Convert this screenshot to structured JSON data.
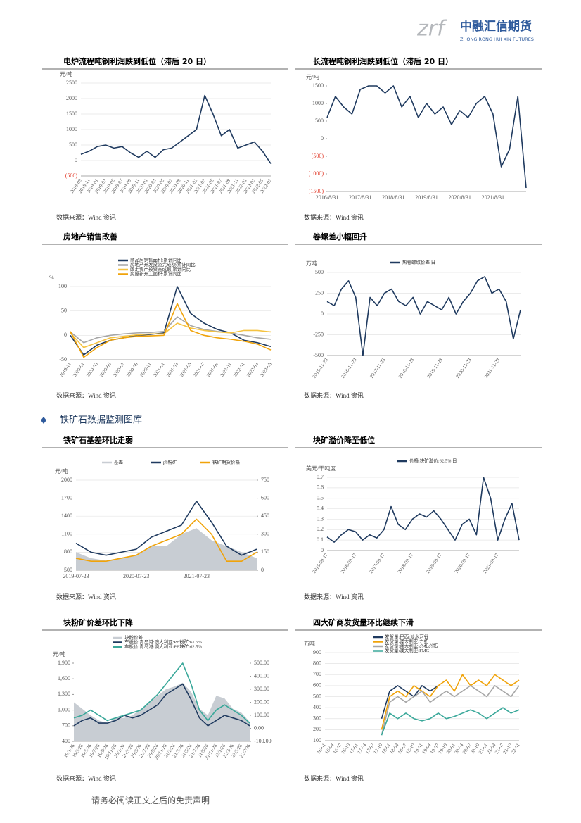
{
  "header": {
    "logo_mark": "zrf",
    "logo_text": "中融汇信期货",
    "logo_subtext": "ZHONG RONG HUI XIN FUTURES"
  },
  "section_title": "铁矿石数据监测图库",
  "footer": "请务必阅读正文之后的免责声明",
  "chart_data": [
    {
      "type": "line",
      "title": "电炉流程吨钢利润跌到低位（滞后 20 日）",
      "source": "数据来源：Wind 资讯",
      "unit": "元/吨",
      "categories": [
        "2018-09",
        "2018-11",
        "2019-01",
        "2019-03",
        "2019-05",
        "2019-07",
        "2019-09",
        "2019-11",
        "2020-01",
        "2020-03",
        "2020-05",
        "2020-07",
        "2020-09",
        "2020-11",
        "2021-01",
        "2021-03",
        "2021-05",
        "2021-07",
        "2021-09",
        "2021-11",
        "2022-01",
        "2022-03",
        "2022-05",
        "2022-07"
      ],
      "series": [
        {
          "color": "#1f3a5f",
          "values": [
            200,
            300,
            450,
            500,
            400,
            450,
            250,
            100,
            300,
            100,
            350,
            400,
            600,
            800,
            1000,
            2100,
            1500,
            800,
            1000,
            400,
            500,
            600,
            300,
            -100
          ]
        }
      ],
      "ylim": [
        -500,
        2500
      ],
      "yticks": [
        {
          "value": -500,
          "label": "(500)"
        },
        0,
        500,
        1000,
        1500,
        2000,
        2500
      ],
      "negative_tick_color": "#e0301e",
      "grid": true
    },
    {
      "type": "line",
      "title": "长流程吨钢利润跌到低位（滞后 20 日）",
      "source": "数据来源：Wind 资讯",
      "unit": "元/吨",
      "categories": [
        "2016/8/31",
        null,
        null,
        null,
        "2017/8/31",
        null,
        null,
        null,
        "2018/8/31",
        null,
        null,
        null,
        "2019/8/31",
        null,
        null,
        null,
        "2020/8/31",
        null,
        null,
        null,
        "2021/8/31",
        null,
        null,
        null,
        null
      ],
      "series": [
        {
          "color": "#1f3a5f",
          "values": [
            600,
            1200,
            900,
            700,
            1400,
            1500,
            1500,
            1300,
            1500,
            900,
            1200,
            600,
            1000,
            700,
            900,
            400,
            800,
            600,
            1000,
            1200,
            700,
            -800,
            -300,
            1200,
            -1400
          ]
        }
      ],
      "ylim": [
        -1500,
        1500
      ],
      "yticks": [
        {
          "value": -1500,
          "label": "(1500)"
        },
        {
          "value": -1000,
          "label": "(1000)"
        },
        {
          "value": -500,
          "label": "(500)"
        },
        0,
        500,
        1000,
        1500
      ],
      "negative_tick_color": "#e0301e",
      "grid": false
    },
    {
      "type": "line",
      "title": "房地产销售改善",
      "source": "数据来源：Wind 资讯",
      "unit": "%",
      "categories": [
        "2019-11",
        "2020-01",
        "2020-03",
        "2020-05",
        "2020-07",
        "2020-09",
        "2020-11",
        "2021-01",
        "2021-03",
        "2021-05",
        "2021-07",
        "2021-09",
        "2021-11",
        "2022-01",
        "2022-03",
        "2022-05"
      ],
      "series": [
        {
          "name": "商品房销售面积:累计同比",
          "color": "#1f3a5f",
          "values": [
            0,
            -40,
            -20,
            -10,
            -5,
            0,
            2,
            5,
            100,
            45,
            25,
            12,
            5,
            -10,
            -15,
            -23
          ]
        },
        {
          "name": "房地产开发投资完成额:累计同比",
          "color": "#a6a6a6",
          "values": [
            7,
            -15,
            -5,
            0,
            3,
            5,
            6,
            8,
            38,
            20,
            12,
            8,
            5,
            0,
            -5,
            -8
          ]
        },
        {
          "name": "固定资产投资完成额:累计同比",
          "color": "#f5c342",
          "values": [
            5,
            -25,
            -15,
            -5,
            -2,
            1,
            3,
            3,
            25,
            15,
            10,
            7,
            5,
            10,
            10,
            7
          ]
        },
        {
          "name": "房屋新开工面积:累计同比",
          "color": "#f0a30a",
          "values": [
            8,
            -45,
            -25,
            -10,
            -5,
            -2,
            -1,
            0,
            65,
            10,
            0,
            -5,
            -8,
            -12,
            -18,
            -30
          ]
        }
      ],
      "ylim": [
        -50,
        100
      ],
      "yticks": [
        -50,
        0,
        50,
        100
      ],
      "grid": true
    },
    {
      "type": "line",
      "title": "卷螺差小幅回升",
      "source": "数据来源：Wind 资讯",
      "unit": "万吨",
      "categories": [
        "2015-11-23",
        null,
        null,
        null,
        "2016-11-23",
        null,
        null,
        null,
        "2017-11-23",
        null,
        null,
        null,
        "2018-11-23",
        null,
        null,
        null,
        "2019-11-23",
        null,
        null,
        null,
        "2020-11-23",
        null,
        null,
        null,
        "2021-11-23",
        null,
        null,
        null
      ],
      "series": [
        {
          "name": "热卷螺纹价差 日",
          "color": "#1f3a5f",
          "values": [
            150,
            100,
            300,
            400,
            200,
            -500,
            200,
            100,
            250,
            300,
            150,
            100,
            200,
            0,
            150,
            100,
            50,
            200,
            0,
            150,
            250,
            400,
            450,
            250,
            300,
            150,
            -300,
            50
          ]
        }
      ],
      "ylim": [
        -500,
        500
      ],
      "yticks": [
        -500,
        -250,
        0,
        250,
        500
      ],
      "grid": true
    },
    {
      "type": "line",
      "title": "铁矿石基差环比走弱",
      "source": "数据来源：Wind 资讯",
      "unit": "元/吨",
      "categories": [
        "2019-07-23",
        null,
        null,
        null,
        "2020-07-23",
        null,
        null,
        null,
        "2021-07-23",
        null,
        null,
        null,
        null
      ],
      "series": [
        {
          "name": "基差",
          "color": "#c8cdd3",
          "axis": "y2",
          "kind": "area",
          "values": [
            150,
            100,
            80,
            100,
            120,
            200,
            200,
            300,
            350,
            250,
            200,
            150,
            100
          ]
        },
        {
          "name": "pb粉矿",
          "color": "#1f3a5f",
          "values": [
            950,
            800,
            750,
            800,
            850,
            1050,
            1150,
            1250,
            1650,
            1300,
            900,
            750,
            850
          ]
        },
        {
          "name": "铁矿期货价格",
          "color": "#f0a30a",
          "values": [
            700,
            650,
            650,
            700,
            750,
            900,
            1000,
            1100,
            1350,
            1100,
            650,
            650,
            800
          ]
        }
      ],
      "ylim": [
        500,
        2000
      ],
      "yticks": [
        500,
        800,
        1100,
        1400,
        1700,
        2000
      ],
      "y2lim": [
        0,
        750
      ],
      "y2ticks": [
        0,
        150,
        300,
        450,
        600,
        750
      ],
      "grid": true
    },
    {
      "type": "line",
      "title": "块矿溢价降至低位",
      "source": "数据来源：Wind 资讯",
      "unit": "美元/干吨度",
      "categories": [
        "2015-09-17",
        null,
        null,
        null,
        "2016-09-17",
        null,
        null,
        null,
        "2017-09-17",
        null,
        null,
        null,
        "2018-09-17",
        null,
        null,
        null,
        "2019-09-17",
        null,
        null,
        null,
        "2020-09-17",
        null,
        null,
        null,
        "2021-09-17",
        null,
        null,
        null
      ],
      "series": [
        {
          "name": "价格:块矿溢价:62.5% 日",
          "color": "#1f3a5f",
          "values": [
            0.13,
            0.08,
            0.15,
            0.2,
            0.18,
            0.1,
            0.15,
            0.12,
            0.2,
            0.42,
            0.25,
            0.2,
            0.3,
            0.35,
            0.32,
            0.38,
            0.3,
            0.2,
            0.1,
            0.25,
            0.3,
            0.15,
            0.7,
            0.5,
            0.1,
            0.3,
            0.45,
            0.1
          ]
        }
      ],
      "ylim": [
        0,
        0.7
      ],
      "yticks": [
        0,
        0.1,
        0.2,
        0.3,
        0.4,
        0.5,
        0.6,
        0.7
      ],
      "grid": true
    },
    {
      "type": "line",
      "title": "块粉矿价差环比下降",
      "source": "数据来源：Wind 资讯",
      "unit": "元/吨",
      "categories": [
        "19/1/26",
        "19/3/26",
        "19/5/26",
        "19/7/26",
        "19/9/26",
        "19/11/26",
        "20/1/26",
        "20/3/26",
        "20/5/26",
        "20/7/26",
        "20/9/26",
        "20/11/26",
        "21/1/26",
        "21/3/26",
        "21/5/26",
        "21/7/26",
        "21/9/26",
        "21/11/26",
        "22/1/26",
        "22/3/26",
        "22/5/26",
        "22/7/26"
      ],
      "series": [
        {
          "name": "块粉价差",
          "color": "#c8cdd3",
          "axis": "y2",
          "kind": "area",
          "values": [
            200,
            150,
            100,
            60,
            40,
            80,
            80,
            100,
            150,
            200,
            250,
            300,
            320,
            350,
            280,
            150,
            100,
            250,
            230,
            150,
            120,
            50
          ]
        },
        {
          "name": "车板价:青岛港:澳大利亚:PB粉矿:61.5%",
          "color": "#1f3a5f",
          "values": [
            700,
            800,
            850,
            750,
            750,
            800,
            900,
            850,
            900,
            1000,
            1100,
            1300,
            1400,
            1500,
            1200,
            850,
            700,
            800,
            900,
            850,
            800,
            700
          ]
        },
        {
          "name": "车板价:青岛港:澳大利亚:PB块矿:62.5%",
          "color": "#3aa89a",
          "values": [
            850,
            900,
            1000,
            900,
            800,
            850,
            900,
            950,
            1000,
            1150,
            1300,
            1500,
            1700,
            1900,
            1500,
            1000,
            800,
            1000,
            1100,
            1000,
            900,
            750
          ]
        }
      ],
      "ylim": [
        400,
        1900
      ],
      "yticks": [
        400,
        700,
        {
          "value": 1000,
          "label": "1,000"
        },
        {
          "value": 1300,
          "label": "1,300"
        },
        {
          "value": 1600,
          "label": "1,600"
        },
        {
          "value": 1900,
          "label": "1,900"
        }
      ],
      "y2lim": [
        -100,
        500
      ],
      "y2ticks": [
        {
          "value": -100,
          "label": "-100.00"
        },
        {
          "value": 0,
          "label": "0.00"
        },
        {
          "value": 100,
          "label": "100.00"
        },
        {
          "value": 200,
          "label": "200.00"
        },
        {
          "value": 300,
          "label": "300.00"
        },
        {
          "value": 400,
          "label": "400.00"
        },
        {
          "value": 500,
          "label": "500.00"
        }
      ],
      "grid": false
    },
    {
      "type": "line",
      "title": "四大矿商发货量环比继续下滑",
      "source": "数据来源：Wind 资讯",
      "unit": "万吨",
      "categories": [
        "16-01",
        "16-04",
        "16-07",
        "16-10",
        "17-01",
        "17-04",
        "17-07",
        "17-10",
        "18-01",
        "18-04",
        "18-07",
        "18-10",
        "19-01",
        "19-04",
        "19-07",
        "19-10",
        "20-01",
        "20-04",
        "20-07",
        "20-10",
        "21-01",
        "21-04",
        "21-07",
        "21-10",
        "22-01"
      ],
      "series": [
        {
          "name": "发货量:巴西:淡水河谷",
          "color": "#1f3a5f",
          "values": [
            null,
            null,
            null,
            null,
            null,
            null,
            null,
            300,
            550,
            600,
            550,
            500,
            600,
            550,
            600,
            null,
            null,
            null,
            null,
            null,
            null,
            null,
            null,
            null,
            null
          ]
        },
        {
          "name": "发货量:澳大利亚:力拓",
          "color": "#f0a30a",
          "values": [
            null,
            null,
            null,
            null,
            null,
            null,
            null,
            200,
            500,
            550,
            500,
            600,
            550,
            500,
            600,
            650,
            550,
            700,
            600,
            650,
            600,
            700,
            650,
            600,
            650
          ]
        },
        {
          "name": "发货量:澳大利亚:必和必拓",
          "color": "#a6a6a6",
          "values": [
            null,
            null,
            null,
            null,
            null,
            null,
            null,
            150,
            450,
            500,
            450,
            500,
            550,
            450,
            500,
            550,
            500,
            550,
            600,
            550,
            500,
            600,
            550,
            500,
            600
          ]
        },
        {
          "name": "发货量:澳大利亚:FMG",
          "color": "#3aa89a",
          "values": [
            null,
            null,
            null,
            null,
            null,
            null,
            null,
            150,
            350,
            300,
            350,
            300,
            280,
            300,
            350,
            300,
            320,
            350,
            380,
            350,
            300,
            350,
            400,
            350,
            380
          ]
        }
      ],
      "ylim": [
        100,
        900
      ],
      "yticks": [
        100,
        200,
        300,
        400,
        500,
        600,
        700,
        800,
        900
      ],
      "grid": true
    }
  ]
}
